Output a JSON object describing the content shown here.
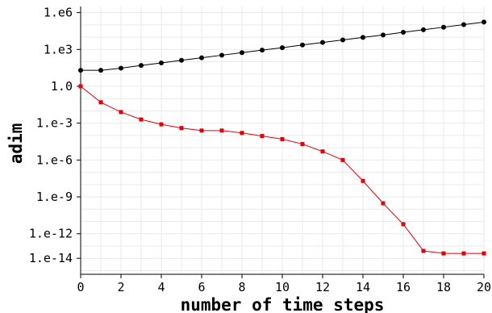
{
  "chart_data": {
    "type": "line",
    "title": "",
    "xlabel": "number of time steps",
    "ylabel": "adim",
    "xlim": [
      0,
      20
    ],
    "ylim_log10": [
      -15.3,
      6.5
    ],
    "y_scale": "log",
    "grid": true,
    "x_ticks": [
      {
        "value": 0,
        "label": "0"
      },
      {
        "value": 2,
        "label": "2"
      },
      {
        "value": 4,
        "label": "4"
      },
      {
        "value": 6,
        "label": "6"
      },
      {
        "value": 8,
        "label": "8"
      },
      {
        "value": 10,
        "label": "10"
      },
      {
        "value": 12,
        "label": "12"
      },
      {
        "value": 14,
        "label": "14"
      },
      {
        "value": 16,
        "label": "16"
      },
      {
        "value": 18,
        "label": "18"
      },
      {
        "value": 20,
        "label": "20"
      }
    ],
    "y_ticks": [
      {
        "value": 1000000.0,
        "label": "1.e6"
      },
      {
        "value": 1000.0,
        "label": "1.e3"
      },
      {
        "value": 1,
        "label": "1.0"
      },
      {
        "value": 0.001,
        "label": "1.e-3"
      },
      {
        "value": 1e-06,
        "label": "1.e-6"
      },
      {
        "value": 1e-09,
        "label": "1.e-9"
      },
      {
        "value": 1e-12,
        "label": "1.e-12"
      },
      {
        "value": 1e-14,
        "label": "1.e-14"
      }
    ],
    "x": [
      0,
      1,
      2,
      3,
      4,
      5,
      6,
      7,
      8,
      9,
      10,
      11,
      12,
      13,
      14,
      15,
      16,
      17,
      18,
      19,
      20
    ],
    "series": [
      {
        "color": "#000000",
        "marker": "circle",
        "values": [
          20,
          20,
          30,
          50,
          80,
          130,
          210,
          340,
          550,
          880,
          1400,
          2300,
          3700,
          6000,
          9500,
          15000,
          25000,
          40000,
          65000,
          105000,
          170000
        ]
      },
      {
        "color": "#e0000a",
        "marker": "square",
        "values": [
          1.0,
          0.05,
          0.008,
          0.002,
          0.0008,
          0.0004,
          0.00025,
          0.00025,
          0.00016,
          9e-05,
          5e-05,
          2e-05,
          5e-06,
          1e-06,
          2e-08,
          3e-10,
          6e-12,
          4e-14,
          2.5e-14,
          2.5e-14,
          2.5e-14
        ]
      }
    ]
  }
}
